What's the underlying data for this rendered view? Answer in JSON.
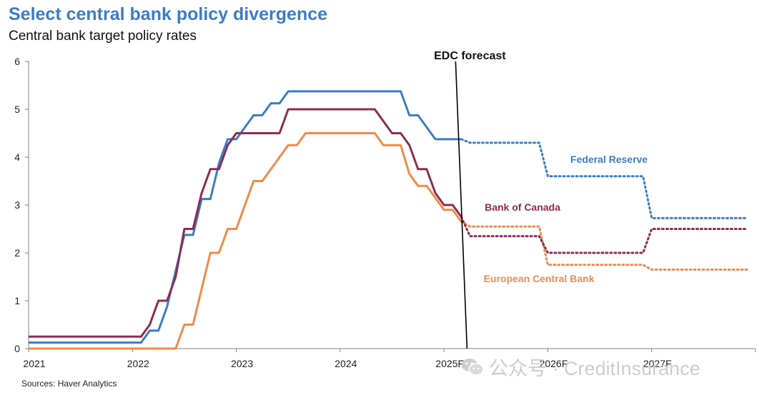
{
  "title": "Select central bank policy divergence",
  "subtitle": "Central bank target policy rates",
  "source": "Sources: Haver Analytics",
  "watermark": {
    "text": "公众号 · CreditInsurance",
    "icon": "wechat-icon"
  },
  "chart_data": {
    "type": "line",
    "x_axis": {
      "type": "date",
      "range": [
        "2021-01",
        "2027-12"
      ],
      "tick_labels": [
        "2021",
        "2022",
        "2023",
        "2024",
        "2025F",
        "2026F",
        "2027F"
      ],
      "tick_positions": [
        "2021-01",
        "2022-01",
        "2023-01",
        "2024-01",
        "2025-01",
        "2026-01",
        "2027-01"
      ]
    },
    "y_axis": {
      "range": [
        0,
        6
      ],
      "ticks": [
        0,
        1,
        2,
        3,
        4,
        5,
        6
      ]
    },
    "grid": false,
    "forecast_line": {
      "label": "EDC forecast",
      "date": "2025-03"
    },
    "series": [
      {
        "name": "Federal Reserve",
        "color": "#3b7cc6",
        "label_color": "#3b7cc6",
        "actual": [
          [
            "2021-01",
            0.125
          ],
          [
            "2022-02",
            0.125
          ],
          [
            "2022-03",
            0.375
          ],
          [
            "2022-04",
            0.375
          ],
          [
            "2022-05",
            0.875
          ],
          [
            "2022-06",
            1.625
          ],
          [
            "2022-07",
            2.375
          ],
          [
            "2022-08",
            2.375
          ],
          [
            "2022-09",
            3.125
          ],
          [
            "2022-10",
            3.125
          ],
          [
            "2022-11",
            3.875
          ],
          [
            "2022-12",
            4.375
          ],
          [
            "2023-01",
            4.375
          ],
          [
            "2023-02",
            4.625
          ],
          [
            "2023-03",
            4.875
          ],
          [
            "2023-04",
            4.875
          ],
          [
            "2023-05",
            5.125
          ],
          [
            "2023-06",
            5.125
          ],
          [
            "2023-07",
            5.375
          ],
          [
            "2024-08",
            5.375
          ],
          [
            "2024-09",
            4.875
          ],
          [
            "2024-10",
            4.875
          ],
          [
            "2024-11",
            4.625
          ],
          [
            "2024-12",
            4.375
          ],
          [
            "2025-03",
            4.375
          ]
        ],
        "forecast": [
          [
            "2025-03",
            4.375
          ],
          [
            "2025-04",
            4.3
          ],
          [
            "2025-12",
            4.3
          ],
          [
            "2026-01",
            3.6
          ],
          [
            "2026-12",
            3.6
          ],
          [
            "2027-01",
            2.725
          ],
          [
            "2027-12",
            2.725
          ]
        ]
      },
      {
        "name": "Bank of Canada",
        "color": "#8b2d52",
        "label_color": "#8b2d52",
        "actual": [
          [
            "2021-01",
            0.25
          ],
          [
            "2022-02",
            0.25
          ],
          [
            "2022-03",
            0.5
          ],
          [
            "2022-04",
            1.0
          ],
          [
            "2022-05",
            1.0
          ],
          [
            "2022-06",
            1.5
          ],
          [
            "2022-07",
            2.5
          ],
          [
            "2022-08",
            2.5
          ],
          [
            "2022-09",
            3.25
          ],
          [
            "2022-10",
            3.75
          ],
          [
            "2022-11",
            3.75
          ],
          [
            "2022-12",
            4.25
          ],
          [
            "2023-01",
            4.5
          ],
          [
            "2023-06",
            4.5
          ],
          [
            "2023-07",
            5.0
          ],
          [
            "2024-05",
            5.0
          ],
          [
            "2024-06",
            4.75
          ],
          [
            "2024-07",
            4.5
          ],
          [
            "2024-08",
            4.5
          ],
          [
            "2024-09",
            4.25
          ],
          [
            "2024-10",
            3.75
          ],
          [
            "2024-11",
            3.75
          ],
          [
            "2024-12",
            3.25
          ],
          [
            "2025-01",
            3.0
          ],
          [
            "2025-02",
            3.0
          ],
          [
            "2025-03",
            2.75
          ]
        ],
        "forecast": [
          [
            "2025-03",
            2.75
          ],
          [
            "2025-04",
            2.35
          ],
          [
            "2025-12",
            2.35
          ],
          [
            "2026-01",
            2.0
          ],
          [
            "2026-12",
            2.0
          ],
          [
            "2027-01",
            2.5
          ],
          [
            "2027-12",
            2.5
          ]
        ]
      },
      {
        "name": "European Central Bank",
        "color": "#ef8a4a",
        "label_color": "#ef8a4a",
        "actual": [
          [
            "2021-01",
            0.0
          ],
          [
            "2022-06",
            0.0
          ],
          [
            "2022-07",
            0.5
          ],
          [
            "2022-08",
            0.5
          ],
          [
            "2022-09",
            1.25
          ],
          [
            "2022-10",
            2.0
          ],
          [
            "2022-11",
            2.0
          ],
          [
            "2022-12",
            2.5
          ],
          [
            "2023-01",
            2.5
          ],
          [
            "2023-02",
            3.0
          ],
          [
            "2023-03",
            3.5
          ],
          [
            "2023-04",
            3.5
          ],
          [
            "2023-05",
            3.75
          ],
          [
            "2023-06",
            4.0
          ],
          [
            "2023-07",
            4.25
          ],
          [
            "2023-08",
            4.25
          ],
          [
            "2023-09",
            4.5
          ],
          [
            "2024-05",
            4.5
          ],
          [
            "2024-06",
            4.25
          ],
          [
            "2024-07",
            4.25
          ],
          [
            "2024-08",
            4.25
          ],
          [
            "2024-09",
            3.65
          ],
          [
            "2024-10",
            3.4
          ],
          [
            "2024-11",
            3.4
          ],
          [
            "2024-12",
            3.15
          ],
          [
            "2025-01",
            2.9
          ],
          [
            "2025-02",
            2.9
          ],
          [
            "2025-03",
            2.65
          ]
        ],
        "forecast": [
          [
            "2025-03",
            2.65
          ],
          [
            "2025-04",
            2.55
          ],
          [
            "2025-12",
            2.55
          ],
          [
            "2026-01",
            1.75
          ],
          [
            "2026-12",
            1.75
          ],
          [
            "2027-01",
            1.65
          ],
          [
            "2027-12",
            1.65
          ]
        ]
      }
    ]
  }
}
